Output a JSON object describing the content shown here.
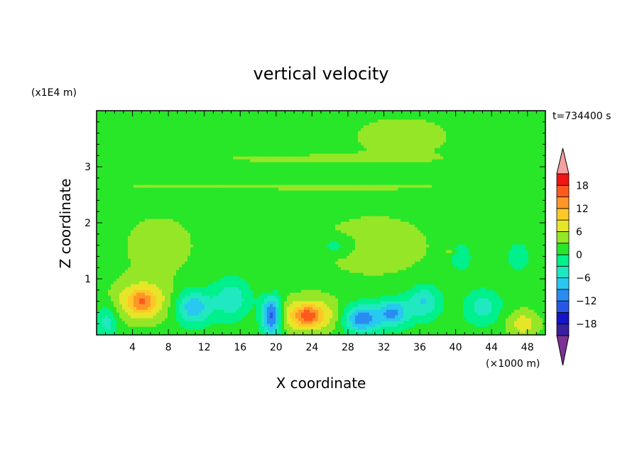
{
  "chart_data": {
    "type": "heatmap",
    "title": "vertical velocity",
    "xlabel": "X coordinate",
    "ylabel": "Z coordinate",
    "x_unit": "(×1000 m)",
    "y_unit": "(x1E4 m)",
    "time_label": "t=734400 s",
    "xlim": [
      0,
      50
    ],
    "ylim": [
      0,
      4
    ],
    "x_ticks": [
      4,
      8,
      12,
      16,
      20,
      24,
      28,
      32,
      36,
      40,
      44,
      48
    ],
    "y_ticks": [
      1,
      2,
      3
    ],
    "colorbar": {
      "min": -21,
      "max": 21,
      "levels": [
        -21,
        -18,
        -15,
        -12,
        -9,
        -6,
        -3,
        0,
        3,
        6,
        9,
        12,
        15,
        18,
        21
      ],
      "tick_values": [
        18,
        12,
        6,
        0,
        -6,
        -12,
        -18
      ],
      "colors": [
        "#7b3294",
        "#3a1fa0",
        "#1414c8",
        "#2857e8",
        "#2a8cf0",
        "#28c8f0",
        "#20e8c0",
        "#00f08c",
        "#28e628",
        "#96e628",
        "#e6e628",
        "#ffc828",
        "#ff9628",
        "#ff5a1e",
        "#f01414",
        "#f5a0a0"
      ],
      "extend": "both"
    },
    "background_level": 1.5,
    "features": [
      {
        "kind": "updraft",
        "x": 5,
        "z": 0.6,
        "peak": 9,
        "sx": 3.0,
        "sz": 0.35
      },
      {
        "kind": "updraft",
        "x": 5,
        "z": 0.6,
        "peak": 5,
        "sx": 1.2,
        "sz": 0.18
      },
      {
        "kind": "updraft",
        "x": 23.5,
        "z": 0.35,
        "peak": 10,
        "sx": 3.2,
        "sz": 0.3
      },
      {
        "kind": "updraft",
        "x": 23.5,
        "z": 0.35,
        "peak": 6,
        "sx": 1.3,
        "sz": 0.14
      },
      {
        "kind": "updraft",
        "x": 47.5,
        "z": 0.2,
        "peak": 6,
        "sx": 1.8,
        "sz": 0.25
      },
      {
        "kind": "updraft",
        "x": 19.3,
        "z": 0.78,
        "peak": 4,
        "sx": 0.4,
        "sz": 0.06
      },
      {
        "kind": "updraft",
        "x": 39.5,
        "z": 1.48,
        "peak": 3.5,
        "sx": 0.6,
        "sz": 0.06
      },
      {
        "kind": "downdraft",
        "x": 1.2,
        "z": 0.25,
        "peak": -6,
        "sx": 1.2,
        "sz": 0.3
      },
      {
        "kind": "downdraft",
        "x": 10.8,
        "z": 0.5,
        "peak": -10,
        "sx": 2.0,
        "sz": 0.3
      },
      {
        "kind": "downdraft",
        "x": 19.5,
        "z": 0.35,
        "peak": -16,
        "sx": 1.1,
        "sz": 0.35
      },
      {
        "kind": "downdraft",
        "x": 29.5,
        "z": 0.3,
        "peak": -13,
        "sx": 2.0,
        "sz": 0.25
      },
      {
        "kind": "downdraft",
        "x": 33,
        "z": 0.4,
        "peak": -11,
        "sx": 1.8,
        "sz": 0.25
      },
      {
        "kind": "downdraft",
        "x": 36.5,
        "z": 0.6,
        "peak": -8,
        "sx": 1.8,
        "sz": 0.3
      },
      {
        "kind": "downdraft",
        "x": 15,
        "z": 0.65,
        "peak": -7,
        "sx": 2.0,
        "sz": 0.35
      },
      {
        "kind": "downdraft",
        "x": 43,
        "z": 0.5,
        "peak": -6,
        "sx": 2.0,
        "sz": 0.3
      },
      {
        "kind": "downdraft",
        "x": 47,
        "z": 1.4,
        "peak": -4,
        "sx": 1.2,
        "sz": 0.25
      },
      {
        "kind": "downdraft",
        "x": 26.5,
        "z": 1.6,
        "peak": -4,
        "sx": 1.8,
        "sz": 0.15
      },
      {
        "kind": "downdraft",
        "x": 40.5,
        "z": 1.4,
        "peak": -5,
        "sx": 1.2,
        "sz": 0.25
      },
      {
        "kind": "weak_up_band",
        "x": 34,
        "z": 3.55,
        "peak": 2.5,
        "sx": 7,
        "sz": 0.45
      },
      {
        "kind": "weak_up_band",
        "x": 23,
        "z": 3.15,
        "peak": 2,
        "sx": 15,
        "sz": 0.1
      },
      {
        "kind": "weak_up_band",
        "x": 20,
        "z": 2.65,
        "peak": 2,
        "sx": 25,
        "sz": 0.07
      },
      {
        "kind": "weak_up_band",
        "x": 7,
        "z": 1.6,
        "peak": 2.5,
        "sx": 5,
        "sz": 0.7
      },
      {
        "kind": "weak_up_band",
        "x": 31,
        "z": 1.6,
        "peak": 2.3,
        "sx": 9,
        "sz": 0.8
      }
    ]
  }
}
